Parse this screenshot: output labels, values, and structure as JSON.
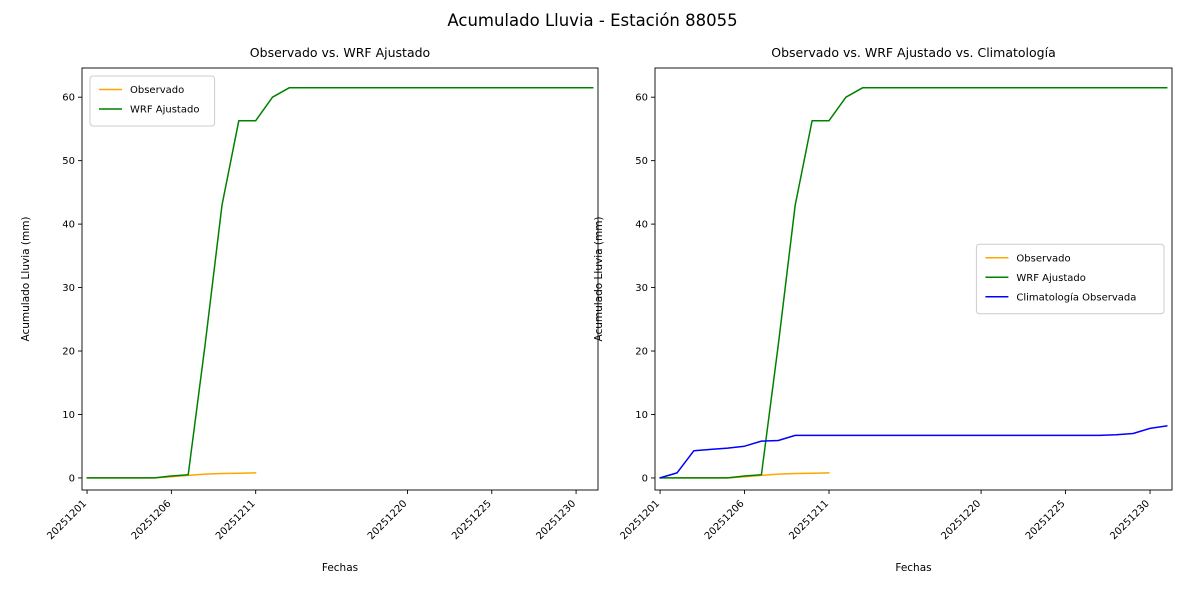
{
  "figure": {
    "title": "Acumulado Lluvia - Estación 88055"
  },
  "chart_data": [
    {
      "type": "line",
      "title": "Observado vs. WRF Ajustado",
      "xlabel": "Fechas",
      "ylabel": "Acumulado Lluvia (mm)",
      "xlim": [
        0.7,
        31.3
      ],
      "ylim": [
        -1.9,
        64.6
      ],
      "grid": false,
      "yticks": [
        0,
        10,
        20,
        30,
        40,
        50,
        60
      ],
      "xticks": {
        "positions": [
          1,
          6,
          11,
          20,
          25,
          30
        ],
        "labels": [
          "20251201",
          "20251206",
          "20251211",
          "20251220",
          "20251225",
          "20251230"
        ]
      },
      "legend": {
        "position": "upper-left",
        "entries": [
          "Observado",
          "WRF Ajustado"
        ]
      },
      "series": [
        {
          "name": "Observado",
          "color": "#FFA500",
          "x": [
            1,
            2,
            3,
            4,
            5,
            6,
            7,
            8,
            9,
            10,
            11
          ],
          "values": [
            0,
            0,
            0,
            0,
            0,
            0.2,
            0.4,
            0.6,
            0.7,
            0.75,
            0.8
          ]
        },
        {
          "name": "WRF Ajustado",
          "color": "#008000",
          "x": [
            1,
            2,
            3,
            4,
            5,
            6,
            7,
            8,
            9,
            10,
            11,
            12,
            13,
            14,
            15,
            16,
            17,
            18,
            19,
            20,
            21,
            22,
            23,
            24,
            25,
            26,
            27,
            28,
            29,
            30,
            31
          ],
          "values": [
            0,
            0,
            0,
            0,
            0,
            0.3,
            0.5,
            21,
            43,
            56.3,
            56.3,
            60,
            61.5,
            61.5,
            61.5,
            61.5,
            61.5,
            61.5,
            61.5,
            61.5,
            61.5,
            61.5,
            61.5,
            61.5,
            61.5,
            61.5,
            61.5,
            61.5,
            61.5,
            61.5,
            61.5
          ]
        }
      ]
    },
    {
      "type": "line",
      "title": "Observado vs. WRF Ajustado vs. Climatología",
      "xlabel": "Fechas",
      "ylabel": "Acumulado Lluvia (mm)",
      "xlim": [
        0.7,
        31.3
      ],
      "ylim": [
        -1.9,
        64.6
      ],
      "grid": false,
      "yticks": [
        0,
        10,
        20,
        30,
        40,
        50,
        60
      ],
      "xticks": {
        "positions": [
          1,
          6,
          11,
          20,
          25,
          30
        ],
        "labels": [
          "20251201",
          "20251206",
          "20251211",
          "20251220",
          "20251225",
          "20251230"
        ]
      },
      "legend": {
        "position": "center-right",
        "entries": [
          "Observado",
          "WRF Ajustado",
          "Climatología Observada"
        ]
      },
      "series": [
        {
          "name": "Observado",
          "color": "#FFA500",
          "x": [
            1,
            2,
            3,
            4,
            5,
            6,
            7,
            8,
            9,
            10,
            11
          ],
          "values": [
            0,
            0,
            0,
            0,
            0,
            0.2,
            0.4,
            0.6,
            0.7,
            0.75,
            0.8
          ]
        },
        {
          "name": "WRF Ajustado",
          "color": "#008000",
          "x": [
            1,
            2,
            3,
            4,
            5,
            6,
            7,
            8,
            9,
            10,
            11,
            12,
            13,
            14,
            15,
            16,
            17,
            18,
            19,
            20,
            21,
            22,
            23,
            24,
            25,
            26,
            27,
            28,
            29,
            30,
            31
          ],
          "values": [
            0,
            0,
            0,
            0,
            0,
            0.3,
            0.5,
            21,
            43,
            56.3,
            56.3,
            60,
            61.5,
            61.5,
            61.5,
            61.5,
            61.5,
            61.5,
            61.5,
            61.5,
            61.5,
            61.5,
            61.5,
            61.5,
            61.5,
            61.5,
            61.5,
            61.5,
            61.5,
            61.5,
            61.5
          ]
        },
        {
          "name": "Climatología Observada",
          "color": "#0000FF",
          "x": [
            1,
            2,
            3,
            4,
            5,
            6,
            7,
            8,
            9,
            10,
            11,
            12,
            13,
            14,
            15,
            16,
            17,
            18,
            19,
            20,
            21,
            22,
            23,
            24,
            25,
            26,
            27,
            28,
            29,
            30,
            31
          ],
          "values": [
            0,
            0.8,
            4.3,
            4.5,
            4.7,
            5.0,
            5.8,
            5.9,
            6.7,
            6.7,
            6.7,
            6.7,
            6.7,
            6.7,
            6.7,
            6.7,
            6.7,
            6.7,
            6.7,
            6.7,
            6.7,
            6.7,
            6.7,
            6.7,
            6.7,
            6.7,
            6.7,
            6.8,
            7.0,
            7.8,
            8.2
          ]
        }
      ]
    }
  ]
}
